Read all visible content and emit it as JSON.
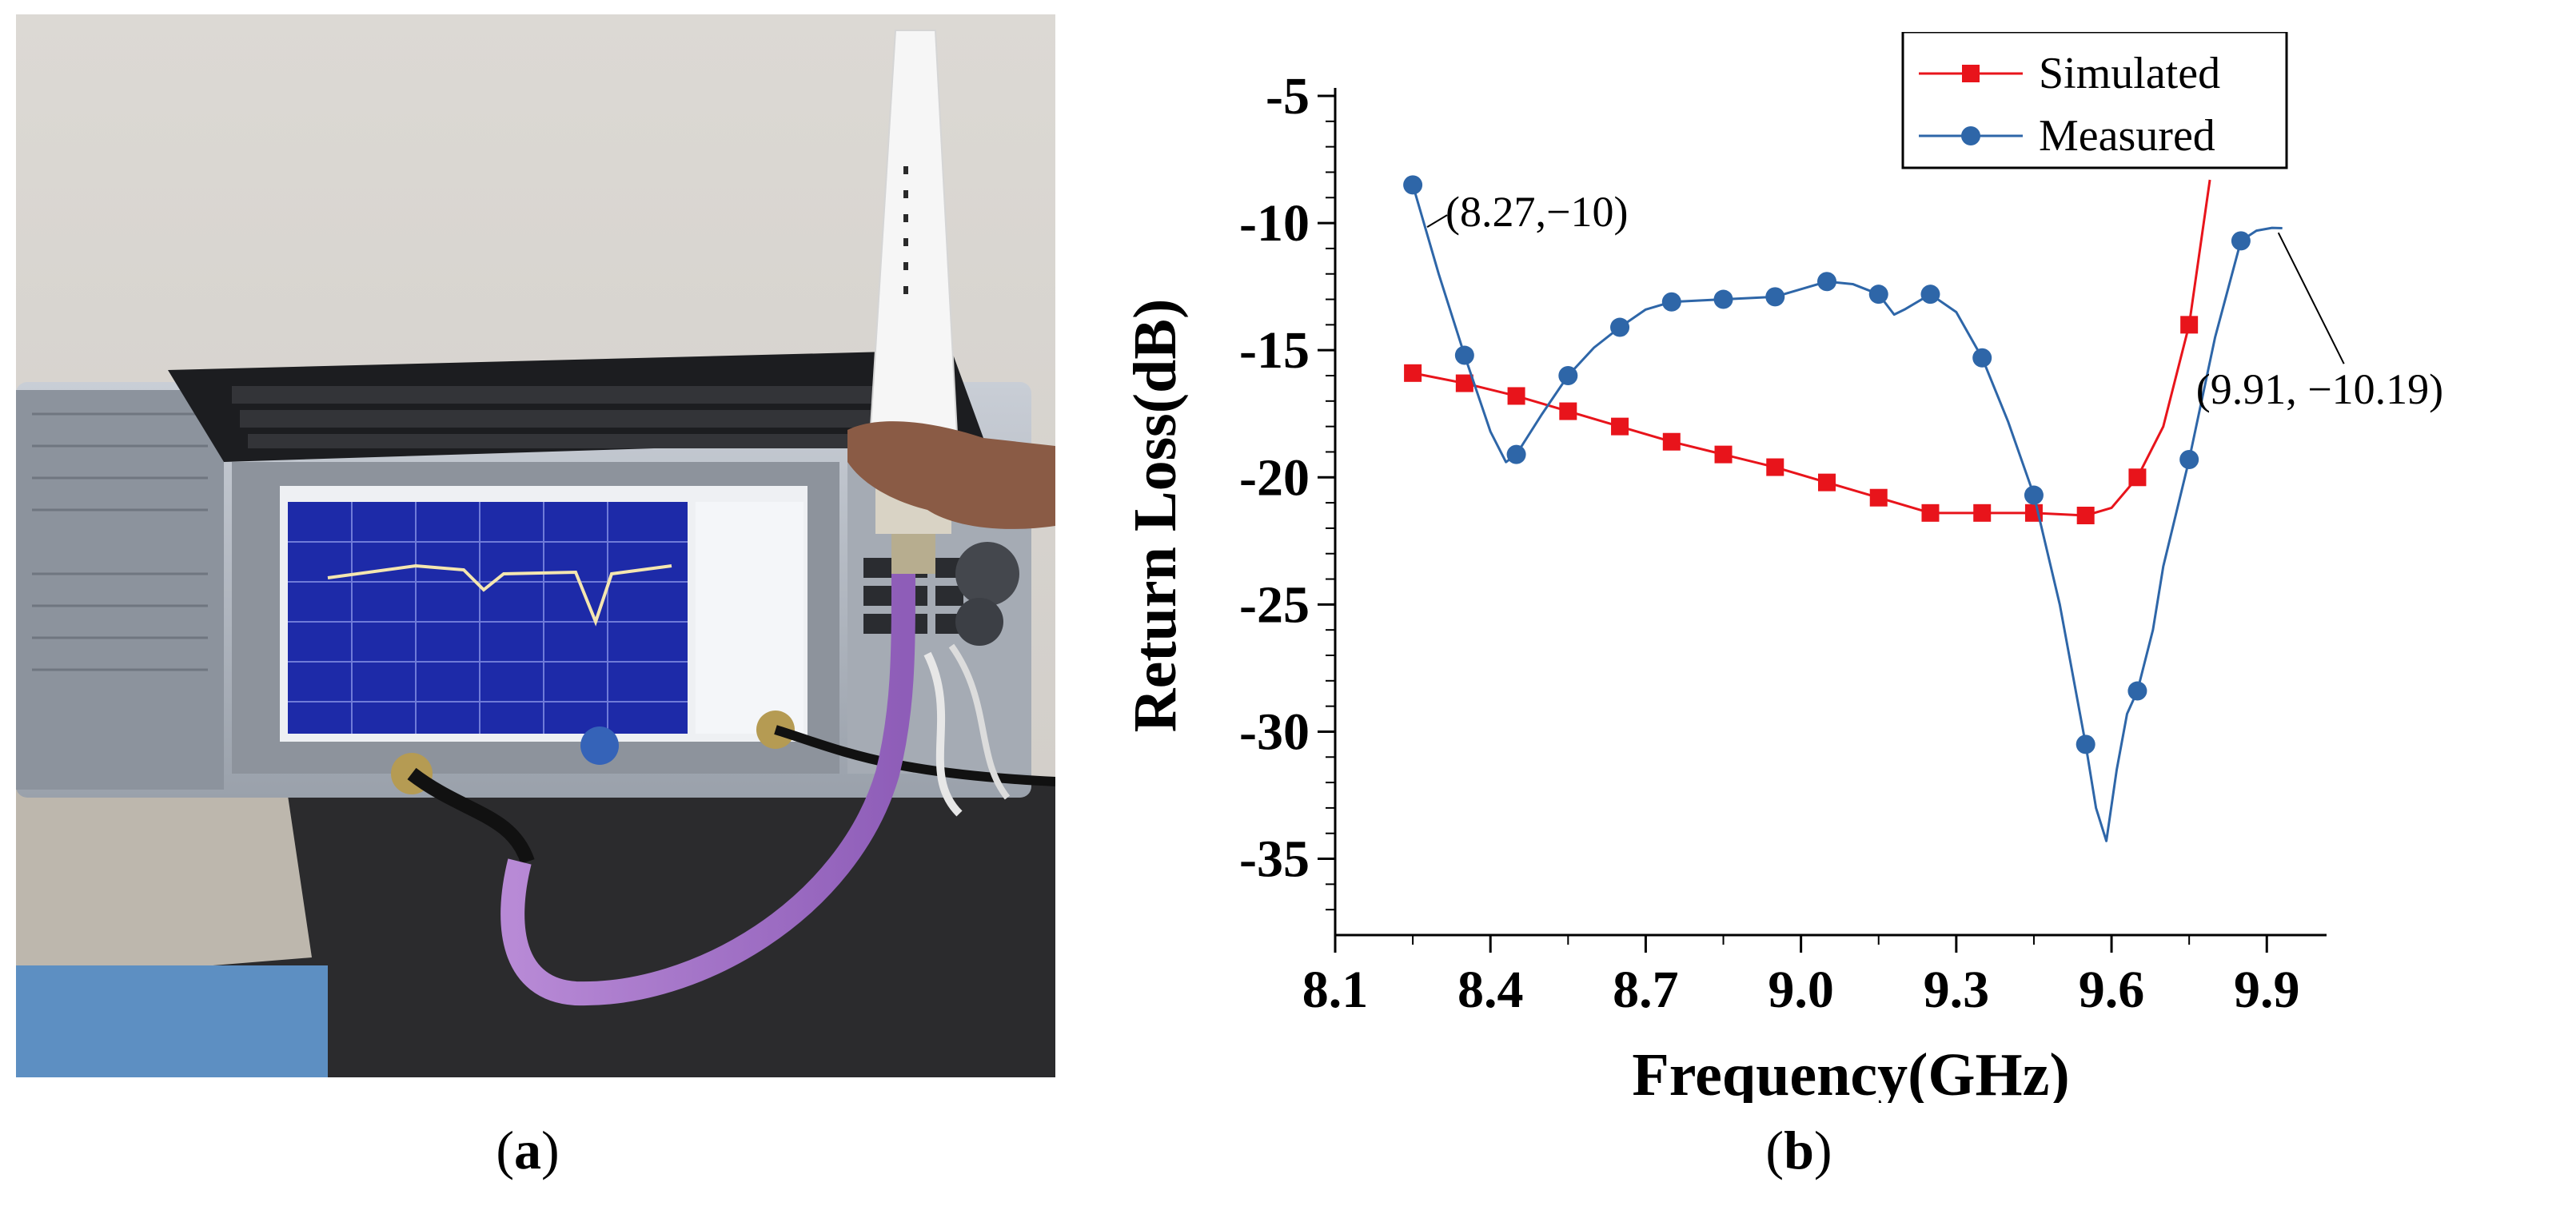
{
  "panels": {
    "a": {
      "label_open": "(",
      "label_letter": "a",
      "label_close": ")"
    },
    "b": {
      "label_open": "(",
      "label_letter": "b",
      "label_close": ")"
    }
  },
  "chart_data": {
    "type": "line",
    "title": "",
    "xlabel": "Frequency(GHz)",
    "ylabel": "Return Loss(dB)",
    "xlim": [
      8.1,
      10.0
    ],
    "ylim": [
      -38,
      -5
    ],
    "xticks": [
      "8.1",
      "8.4",
      "8.7",
      "9.0",
      "9.3",
      "9.6",
      "9.9"
    ],
    "yticks": [
      "-5",
      "-10",
      "-15",
      "-20",
      "-25",
      "-30",
      "-35"
    ],
    "grid": false,
    "legend_position": "top-right",
    "series": [
      {
        "name": "Simulated",
        "color": "#e8141b",
        "marker": "square",
        "x": [
          8.25,
          8.35,
          8.45,
          8.55,
          8.65,
          8.75,
          8.85,
          8.95,
          9.05,
          9.15,
          9.25,
          9.35,
          9.45,
          9.55,
          9.65,
          9.75
        ],
        "y": [
          -15.9,
          -16.3,
          -16.8,
          -17.4,
          -18.0,
          -18.6,
          -19.1,
          -19.6,
          -20.2,
          -20.8,
          -21.4,
          -21.4,
          -21.4,
          -21.5,
          -20.0,
          -14.0
        ],
        "line_x": [
          8.25,
          8.35,
          8.45,
          8.55,
          8.65,
          8.75,
          8.85,
          8.95,
          9.05,
          9.15,
          9.25,
          9.35,
          9.45,
          9.55,
          9.6,
          9.65,
          9.7,
          9.75,
          9.79
        ],
        "line_y": [
          -15.9,
          -16.3,
          -16.8,
          -17.4,
          -18.0,
          -18.6,
          -19.1,
          -19.6,
          -20.2,
          -20.8,
          -21.4,
          -21.4,
          -21.4,
          -21.5,
          -21.2,
          -20.0,
          -18.0,
          -14.0,
          -8.3
        ]
      },
      {
        "name": "Measured",
        "color": "#2e66a8",
        "marker": "circle",
        "x": [
          8.25,
          8.35,
          8.45,
          8.55,
          8.65,
          8.75,
          8.85,
          8.95,
          9.05,
          9.15,
          9.25,
          9.35,
          9.45,
          9.55,
          9.65,
          9.75,
          9.85
        ],
        "y": [
          -8.5,
          -15.2,
          -19.1,
          -16.0,
          -14.1,
          -13.1,
          -13.0,
          -12.9,
          -12.3,
          -12.8,
          -12.8,
          -15.3,
          -20.7,
          -30.5,
          -28.4,
          -19.3,
          -10.7
        ],
        "line_x": [
          8.25,
          8.3,
          8.35,
          8.4,
          8.43,
          8.45,
          8.5,
          8.55,
          8.6,
          8.65,
          8.7,
          8.75,
          8.85,
          8.95,
          9.0,
          9.05,
          9.1,
          9.15,
          9.18,
          9.2,
          9.25,
          9.3,
          9.35,
          9.4,
          9.45,
          9.5,
          9.55,
          9.57,
          9.59,
          9.61,
          9.63,
          9.65,
          9.68,
          9.7,
          9.75,
          9.8,
          9.85,
          9.88,
          9.91,
          9.93
        ],
        "line_y": [
          -8.5,
          -12.0,
          -15.2,
          -18.2,
          -19.4,
          -19.1,
          -17.5,
          -16.0,
          -14.9,
          -14.1,
          -13.4,
          -13.1,
          -13.0,
          -12.9,
          -12.6,
          -12.3,
          -12.4,
          -12.8,
          -13.6,
          -13.4,
          -12.8,
          -13.5,
          -15.3,
          -17.8,
          -20.7,
          -25.0,
          -30.5,
          -33.0,
          -34.3,
          -31.5,
          -29.3,
          -28.4,
          -26.0,
          -23.5,
          -19.3,
          -14.5,
          -10.7,
          -10.3,
          -10.19,
          -10.2
        ]
      }
    ],
    "annotations": [
      {
        "text": "(8.27,−10)",
        "x": 8.27,
        "y": -10
      },
      {
        "text": "(9.91, −10.19)",
        "x": 9.91,
        "y": -10.19
      }
    ]
  }
}
